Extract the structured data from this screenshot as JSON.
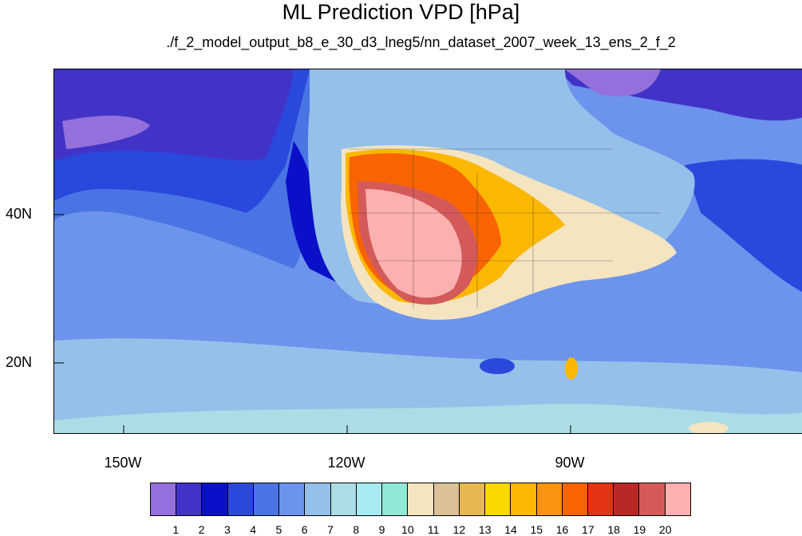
{
  "title": "ML Prediction VPD [hPa]",
  "subtitle": "./f_2_model_output_b8_e_30_d3_lneg5/nn_dataset_2007_week_13_ens_2_f_2",
  "lat_labels": [
    "40N",
    "20N"
  ],
  "lon_labels": [
    "150W",
    "120W",
    "90W"
  ],
  "colorbar": {
    "labels": [
      "1",
      "2",
      "3",
      "4",
      "5",
      "6",
      "7",
      "8",
      "9",
      "10",
      "11",
      "12",
      "13",
      "14",
      "15",
      "16",
      "17",
      "18",
      "19",
      "20"
    ],
    "colors": [
      "#9370db",
      "#4233c8",
      "#0a10c8",
      "#2a48dc",
      "#4a74e4",
      "#6d94ec",
      "#94c0ea",
      "#acdde6",
      "#a8ecf2",
      "#90e8d8",
      "#f4e4c0",
      "#dcc098",
      "#e6b850",
      "#fad800",
      "#fcb800",
      "#fb9410",
      "#f96400",
      "#e63214",
      "#b92824",
      "#d45a5a",
      "#fcb0b0"
    ]
  }
}
